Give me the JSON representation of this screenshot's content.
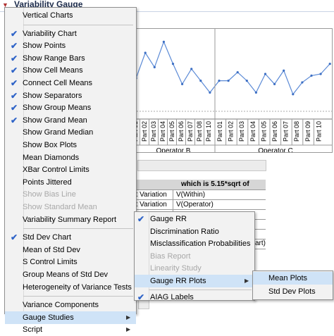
{
  "report": {
    "title": "Variability Gauge",
    "parts": [
      "Part 01",
      "Part 02",
      "Part 03",
      "Part 04",
      "Part 05",
      "Part 06",
      "Part 07",
      "Part 08",
      "Part 09",
      "Part 10"
    ],
    "operators": [
      "Operator B",
      "Operator C"
    ],
    "table_header": "which is 5.15*sqrt of",
    "table_rows": [
      {
        "col1": "nt Variation",
        "col2": "V(Within)"
      },
      {
        "col1": "nt Variation",
        "col2": "V(Operator)"
      },
      {
        "col1": "",
        "col2": ""
      },
      {
        "col1": "",
        "col2": ""
      },
      {
        "col1": "",
        "col2": ""
      },
      {
        "col1": "",
        "col2": ""
      }
    ],
    "table_tail": "art)"
  },
  "main_menu": {
    "items": [
      {
        "label": "Vertical Charts",
        "checked": false,
        "disabled": false,
        "submenu": false
      },
      {
        "separator": true
      },
      {
        "label": "Variability Chart",
        "checked": true,
        "disabled": false,
        "submenu": false
      },
      {
        "label": "Show Points",
        "checked": true,
        "disabled": false,
        "submenu": false
      },
      {
        "label": "Show Range Bars",
        "checked": true,
        "disabled": false,
        "submenu": false
      },
      {
        "label": "Show Cell Means",
        "checked": true,
        "disabled": false,
        "submenu": false
      },
      {
        "label": "Connect Cell Means",
        "checked": true,
        "disabled": false,
        "submenu": false
      },
      {
        "label": "Show Separators",
        "checked": true,
        "disabled": false,
        "submenu": false
      },
      {
        "label": "Show Group Means",
        "checked": true,
        "disabled": false,
        "submenu": false
      },
      {
        "label": "Show Grand Mean",
        "checked": true,
        "disabled": false,
        "submenu": false
      },
      {
        "label": "Show Grand Median",
        "checked": false,
        "disabled": false,
        "submenu": false
      },
      {
        "label": "Show Box Plots",
        "checked": false,
        "disabled": false,
        "submenu": false
      },
      {
        "label": "Mean Diamonds",
        "checked": false,
        "disabled": false,
        "submenu": false
      },
      {
        "label": "XBar Control Limits",
        "checked": false,
        "disabled": false,
        "submenu": false
      },
      {
        "label": "Points Jittered",
        "checked": false,
        "disabled": false,
        "submenu": false
      },
      {
        "label": "Show Bias Line",
        "checked": false,
        "disabled": true,
        "submenu": false
      },
      {
        "label": "Show Standard Mean",
        "checked": false,
        "disabled": true,
        "submenu": false
      },
      {
        "label": "Variability Summary Report",
        "checked": false,
        "disabled": false,
        "submenu": false
      },
      {
        "separator": true
      },
      {
        "label": "Std Dev Chart",
        "checked": true,
        "disabled": false,
        "submenu": false
      },
      {
        "label": "Mean of Std Dev",
        "checked": false,
        "disabled": false,
        "submenu": false
      },
      {
        "label": "S Control Limits",
        "checked": false,
        "disabled": false,
        "submenu": false
      },
      {
        "label": "Group Means of Std Dev",
        "checked": false,
        "disabled": false,
        "submenu": false
      },
      {
        "label": "Heterogeneity of Variance Tests",
        "checked": false,
        "disabled": false,
        "submenu": false
      },
      {
        "separator": true
      },
      {
        "label": "Variance Components",
        "checked": false,
        "disabled": false,
        "submenu": false
      },
      {
        "label": "Gauge Studies",
        "checked": false,
        "disabled": false,
        "submenu": true,
        "highlighted": true
      },
      {
        "label": "Script",
        "checked": false,
        "disabled": false,
        "submenu": true
      }
    ]
  },
  "gauge_menu": {
    "items": [
      {
        "label": "Gauge RR",
        "checked": true,
        "disabled": false,
        "submenu": false
      },
      {
        "label": "Discrimination Ratio",
        "checked": false,
        "disabled": false,
        "submenu": false
      },
      {
        "label": "Misclassification Probabilities",
        "checked": false,
        "disabled": false,
        "submenu": false
      },
      {
        "label": "Bias Report",
        "checked": false,
        "disabled": true,
        "submenu": false
      },
      {
        "label": "Linearity Study",
        "checked": false,
        "disabled": true,
        "submenu": false
      },
      {
        "label": "Gauge RR Plots",
        "checked": false,
        "disabled": false,
        "submenu": true,
        "highlighted": true
      },
      {
        "separator": true
      },
      {
        "label": "AIAG Labels",
        "checked": true,
        "disabled": false,
        "submenu": false
      }
    ]
  },
  "plots_menu": {
    "items": [
      {
        "label": "Mean Plots",
        "highlighted": true
      },
      {
        "label": "Std Dev Plots",
        "highlighted": false
      }
    ]
  },
  "chart_data": {
    "type": "line",
    "series_values": [
      0.42,
      0.55,
      0.25,
      0.42,
      0.12,
      0.38,
      0.62,
      0.44,
      0.58,
      0.72,
      0.58,
      0.58,
      0.48,
      0.58,
      0.72,
      0.5,
      0.62,
      0.46,
      0.74,
      0.6,
      0.52,
      0.5,
      0.38
    ]
  }
}
